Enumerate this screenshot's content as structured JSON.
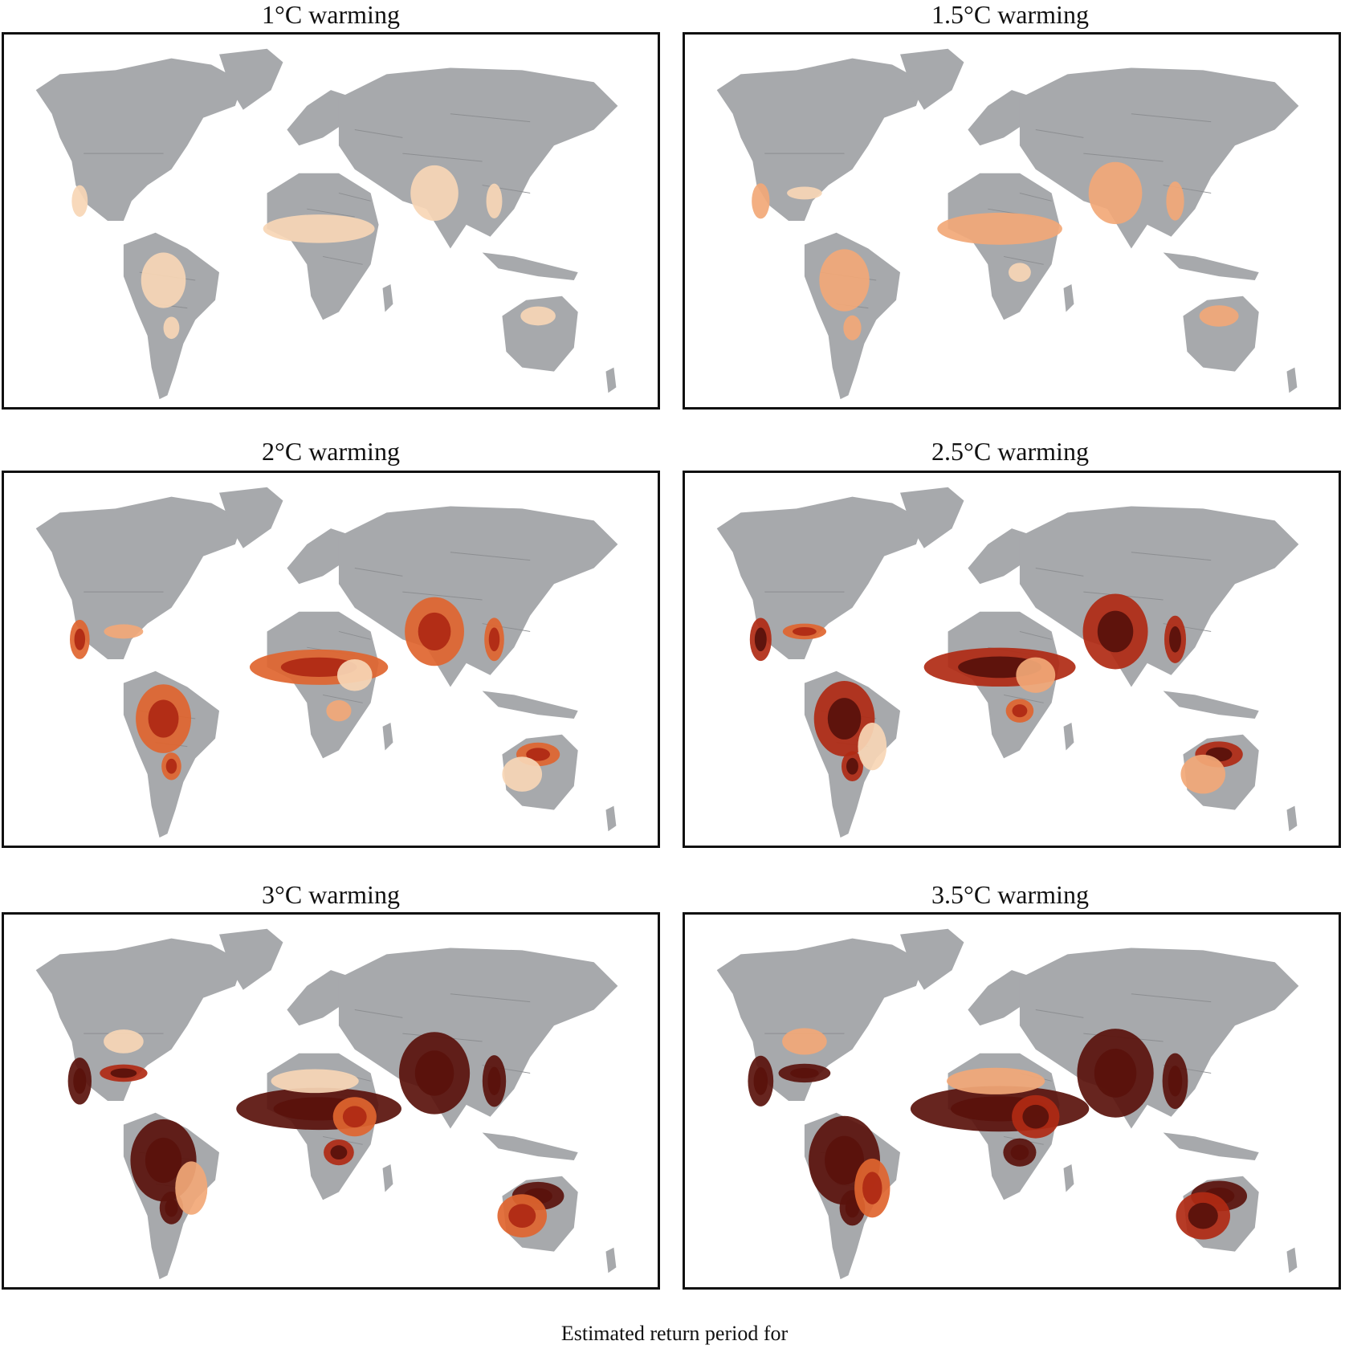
{
  "figure": {
    "panels": [
      {
        "id": "p1",
        "title": "1°C warming",
        "heat_level": 1
      },
      {
        "id": "p2",
        "title": "1.5°C warming",
        "heat_level": 2
      },
      {
        "id": "p3",
        "title": "2°C warming",
        "heat_level": 3
      },
      {
        "id": "p4",
        "title": "2.5°C warming",
        "heat_level": 4
      },
      {
        "id": "p5",
        "title": "3°C warming",
        "heat_level": 5
      },
      {
        "id": "p6",
        "title": "3.5°C warming",
        "heat_level": 6
      }
    ],
    "footer_text": "Estimated return period for"
  },
  "colors": {
    "land": "#a7a9ac",
    "ocean": "#ffffff",
    "border": "#8c8e91",
    "heat_pale": "#f7d6b5",
    "heat_light": "#f2a877",
    "heat_mid": "#e0652f",
    "heat_strong": "#b02a14",
    "heat_dark": "#5a120c"
  }
}
